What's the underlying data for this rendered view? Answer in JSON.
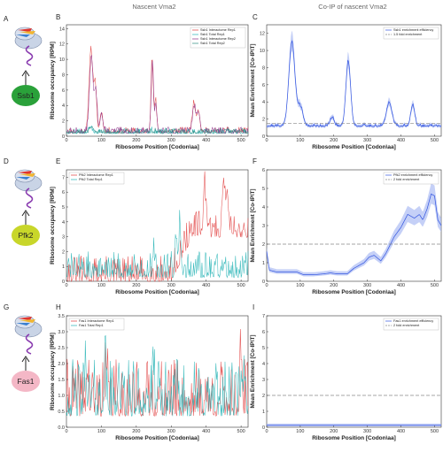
{
  "column_headers": {
    "middle": "Nascent Vma2",
    "right": "Co-IP of nascent Vma2"
  },
  "colors": {
    "interactome": "#e03c3c",
    "total": "#23b3b5",
    "enrichment": "#3355e0",
    "enrichment_band": "#9fb0f2",
    "threshold": "#888888"
  },
  "rows": [
    {
      "letters": [
        "A",
        "B",
        "C"
      ],
      "protein": "Ssb1",
      "blob_color": "#2aa13a"
    },
    {
      "letters": [
        "D",
        "E",
        "F"
      ],
      "protein": "Pfk2",
      "blob_color": "#c8d62a"
    },
    {
      "letters": [
        "G",
        "H",
        "I"
      ],
      "protein": "Fas1",
      "blob_color": "#f4b7c6"
    }
  ],
  "chart_data": [
    {
      "type": "line",
      "panel": "B",
      "title": "",
      "xlabel": "Ribosome Position [Codon\\aa]",
      "ylabel": "Ribosome occupancy [RPM]",
      "xlim": [
        0,
        520
      ],
      "ylim": [
        0,
        14.5
      ],
      "xticks": [
        0,
        100,
        200,
        300,
        400,
        500
      ],
      "yticks": [
        0,
        2,
        4,
        6,
        8,
        10,
        12,
        14
      ],
      "legend": "top-right",
      "series": [
        {
          "name": "Ssb1 Interactome Rep1",
          "color": "#e03c3c",
          "baseline": 0.6,
          "noise": 0.4,
          "seed": 11,
          "peaks": [
            [
              70,
              10.8,
              5
            ],
            [
              82,
              6,
              4
            ],
            [
              100,
              2.6,
              4
            ],
            [
              245,
              10,
              3
            ],
            [
              255,
              4.2,
              3
            ],
            [
              365,
              3.6,
              5
            ],
            [
              378,
              2.8,
              4
            ]
          ]
        },
        {
          "name": "Ssb1 Total Rep1",
          "color": "#23b3b5",
          "baseline": 0.5,
          "noise": 0.35,
          "seed": 12,
          "peaks": [
            [
              70,
              0.5,
              5
            ],
            [
              245,
              0.4,
              3
            ]
          ]
        },
        {
          "name": "Ssb1 Interactome Rep2",
          "color": "#8b2c87",
          "baseline": 0.6,
          "noise": 0.4,
          "seed": 13,
          "peaks": [
            [
              71,
              9.8,
              5
            ],
            [
              84,
              5.2,
              4
            ],
            [
              100,
              2.4,
              4
            ],
            [
              246,
              9.4,
              3
            ],
            [
              256,
              3.8,
              3
            ],
            [
              366,
              3.3,
              5
            ],
            [
              379,
              2.5,
              4
            ]
          ]
        },
        {
          "name": "Ssb1 Total Rep2",
          "color": "#2a8a7f",
          "baseline": 0.55,
          "noise": 0.35,
          "seed": 14,
          "peaks": [
            [
              72,
              0.6,
              5
            ]
          ]
        }
      ]
    },
    {
      "type": "area",
      "panel": "C",
      "title": "",
      "xlabel": "Ribosome Position [Codon\\aa]",
      "ylabel": "Mean Enrichment [Co-IP\\T]",
      "xlim": [
        0,
        520
      ],
      "ylim": [
        0,
        13
      ],
      "xticks": [
        0,
        100,
        200,
        300,
        400,
        500
      ],
      "yticks": [
        0,
        2,
        4,
        6,
        8,
        10,
        12
      ],
      "legend": "top-right",
      "series": [
        {
          "name": "Ssb1 enrichment efficiency",
          "color": "#3355e0",
          "baseline": 1.2,
          "noise": 0.15,
          "seed": 21,
          "peaks": [
            [
              75,
              9.8,
              9
            ],
            [
              100,
              2.2,
              8
            ],
            [
              195,
              1.0,
              6
            ],
            [
              243,
              7.6,
              7
            ],
            [
              365,
              2.8,
              8
            ],
            [
              435,
              2.4,
              6
            ]
          ]
        }
      ],
      "threshold": {
        "name": "1.5 fold enrichment",
        "value": 1.5
      }
    },
    {
      "type": "line",
      "panel": "E",
      "title": "",
      "xlabel": "Ribosome Position [Codon\\aa]",
      "ylabel": "Ribosome occupancy [RPM]",
      "xlim": [
        0,
        520
      ],
      "ylim": [
        0,
        7.5
      ],
      "xticks": [
        0,
        100,
        200,
        300,
        400,
        500
      ],
      "yticks": [
        0,
        1,
        2,
        3,
        4,
        5,
        6,
        7
      ],
      "legend": "top-left",
      "series": [
        {
          "name": "Pfk2 Interactome Rep1",
          "color": "#e03c3c",
          "baseline": 0.4,
          "noise": 0.9,
          "seed": 31,
          "ramp": [
            300,
            3.0
          ],
          "peaks": [
            [
              395,
              3.5,
              3
            ],
            [
              450,
              4.0,
              3
            ],
            [
              460,
              3.2,
              3
            ]
          ]
        },
        {
          "name": "Pfk2 Total Rep1",
          "color": "#23b3b5",
          "baseline": 0.7,
          "noise": 0.9,
          "seed": 32,
          "peaks": [
            [
              250,
              1.4,
              3
            ],
            [
              315,
              2.2,
              3
            ],
            [
              325,
              3.4,
              3
            ]
          ]
        }
      ]
    },
    {
      "type": "area",
      "panel": "F",
      "title": "",
      "xlabel": "Ribosome Position [Codon\\aa]",
      "ylabel": "Mean Enrichment [Co-IP\\T]",
      "xlim": [
        0,
        520
      ],
      "ylim": [
        0,
        6
      ],
      "xticks": [
        0,
        100,
        200,
        300,
        400,
        500
      ],
      "yticks": [
        0,
        1,
        2,
        3,
        4,
        5,
        6
      ],
      "legend": "top-right",
      "series": [
        {
          "name": "Pfk2 enrichment efficiency",
          "color": "#3355e0",
          "profile": [
            [
              0,
              1.6
            ],
            [
              8,
              0.6
            ],
            [
              30,
              0.5
            ],
            [
              60,
              0.5
            ],
            [
              90,
              0.5
            ],
            [
              110,
              0.35
            ],
            [
              140,
              0.35
            ],
            [
              170,
              0.4
            ],
            [
              190,
              0.45
            ],
            [
              210,
              0.4
            ],
            [
              240,
              0.4
            ],
            [
              260,
              0.7
            ],
            [
              290,
              1.0
            ],
            [
              305,
              1.3
            ],
            [
              320,
              1.4
            ],
            [
              340,
              1.1
            ],
            [
              355,
              1.5
            ],
            [
              380,
              2.4
            ],
            [
              400,
              2.9
            ],
            [
              420,
              3.6
            ],
            [
              440,
              3.4
            ],
            [
              455,
              3.6
            ],
            [
              465,
              3.3
            ],
            [
              478,
              3.9
            ],
            [
              490,
              4.7
            ],
            [
              500,
              4.6
            ],
            [
              510,
              3.3
            ],
            [
              520,
              3.0
            ]
          ]
        }
      ],
      "threshold": {
        "name": "2 fold enrichment",
        "value": 2
      }
    },
    {
      "type": "line",
      "panel": "H",
      "title": "",
      "xlabel": "Ribosome Position [Codon\\aa]",
      "ylabel": "Ribosome occupancy [RPM]",
      "xlim": [
        0,
        520
      ],
      "ylim": [
        0,
        3.5
      ],
      "xticks": [
        0,
        100,
        200,
        300,
        400,
        500
      ],
      "yticks": [
        0,
        0.5,
        1.0,
        1.5,
        2.0,
        2.5,
        3.0,
        3.5
      ],
      "legend": "top-left",
      "series": [
        {
          "name": "Fas1 Interactome Rep1",
          "color": "#e03c3c",
          "baseline": 0.8,
          "noise": 0.9,
          "seed": 41,
          "peaks": [
            [
              60,
              1.0,
              3
            ],
            [
              115,
              0.9,
              3
            ],
            [
              500,
              1.6,
              3
            ]
          ]
        },
        {
          "name": "Fas1 Total Rep1",
          "color": "#23b3b5",
          "baseline": 0.8,
          "noise": 0.9,
          "seed": 42,
          "peaks": [
            [
              55,
              1.2,
              3
            ],
            [
              110,
              1.1,
              3
            ],
            [
              150,
              0.8,
              3
            ],
            [
              250,
              0.7,
              3
            ],
            [
              510,
              1.0,
              3
            ]
          ]
        }
      ]
    },
    {
      "type": "area",
      "panel": "I",
      "title": "",
      "xlabel": "Ribosome Position [Codon\\aa]",
      "ylabel": "Mean Enrichment [Co-IP\\T]",
      "xlim": [
        0,
        520
      ],
      "ylim": [
        0,
        7
      ],
      "xticks": [
        0,
        100,
        200,
        300,
        400,
        500
      ],
      "yticks": [
        0,
        1,
        2,
        3,
        4,
        5,
        6,
        7
      ],
      "legend": "top-right",
      "series": [
        {
          "name": "Fas1 enrichment efficiency",
          "color": "#3355e0",
          "profile": [
            [
              0,
              0.12
            ],
            [
              520,
              0.12
            ]
          ]
        }
      ],
      "threshold": {
        "name": "2 fold enrichment",
        "value": 2
      }
    }
  ]
}
